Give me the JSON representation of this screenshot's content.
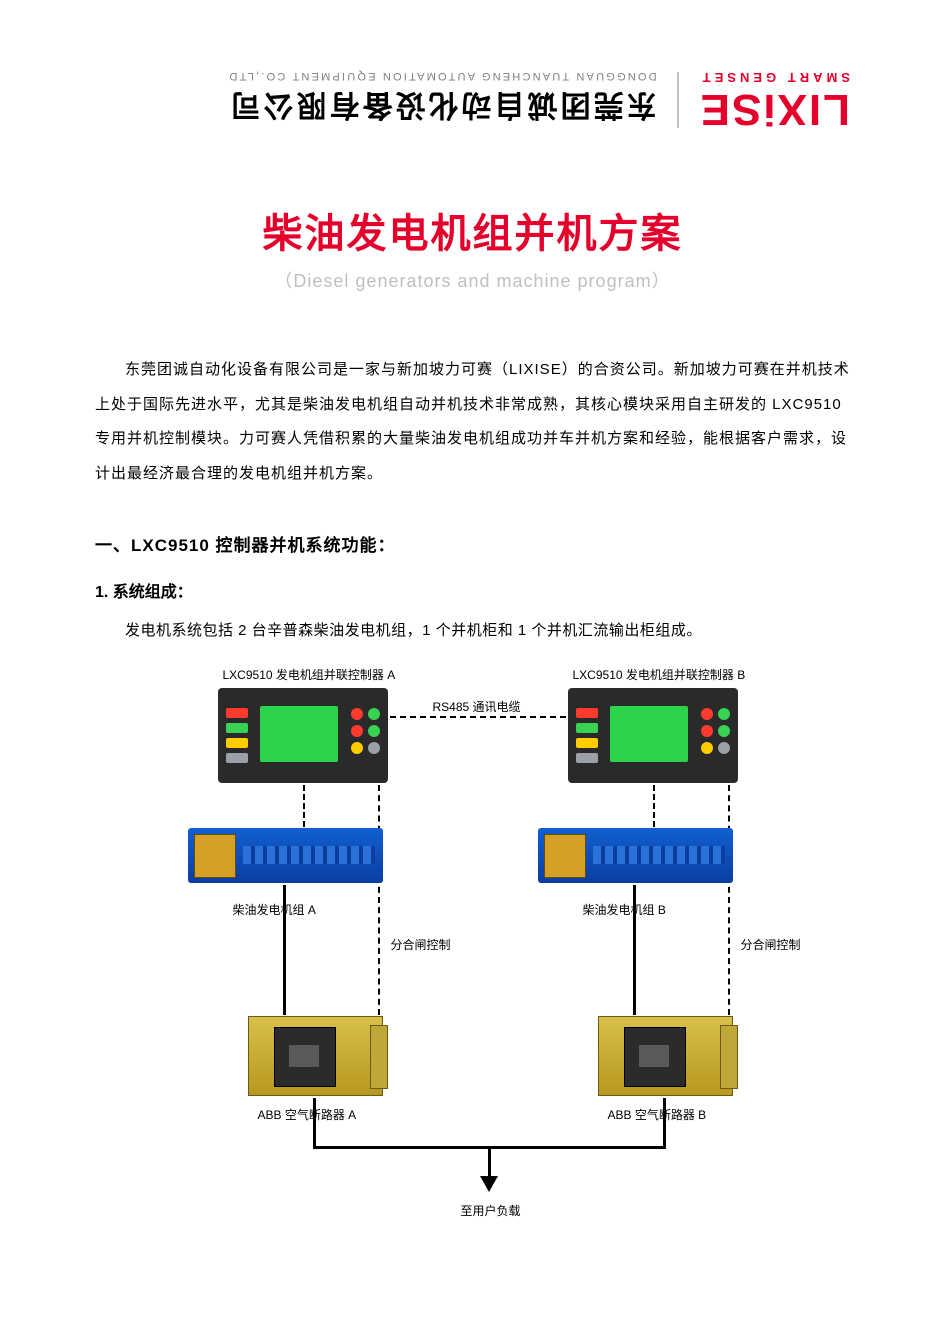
{
  "header": {
    "logo_main": "LIXiSE",
    "logo_sub": "SMART GENSET",
    "company_cn": "东莞团诚自动化设备有限公司",
    "company_en": "DONGGUAN TUANCHENG AUTOMATION EQUIPMENT CO.,LTD"
  },
  "title": {
    "main": "柴油发电机组并机方案",
    "sub": "（Diesel generators and machine program）"
  },
  "intro": "东莞团诚自动化设备有限公司是一家与新加坡力可赛（LIXISE）的合资公司。新加坡力可赛在并机技术上处于国际先进水平，尤其是柴油发电机组自动并机技术非常成熟，其核心模块采用自主研发的 LXC9510 专用并机控制模块。力可赛人凭借积累的大量柴油发电机组成功并车并机方案和经验，能根据客户需求，设计出最经济最合理的发电机组并机方案。",
  "section1": {
    "heading": "一、LXC9510 控制器并机系统功能：",
    "sub1": "1. 系统组成：",
    "line1": "发电机系统包括 2 台辛普森柴油发电机组，1 个并机柜和 1 个并机汇流输出柜组成。"
  },
  "diagram": {
    "controller_a": "LXC9510 发电机组并联控制器  A",
    "controller_b": "LXC9510 发电机组并联控制器  B",
    "cable": "RS485 通讯电缆",
    "gen_a": "柴油发电机组 A",
    "gen_b": "柴油发电机组 B",
    "switch_ctrl": "分合闸控制",
    "breaker_a": "ABB 空气断路器 A",
    "breaker_b": "ABB 空气断路器 B",
    "output": "至用户负载",
    "colors": {
      "controller_bg": "#2a2a2a",
      "screen": "#2bd44a",
      "generator": "#1060d0",
      "gen_panel": "#d4a026",
      "breaker": "#d8c04a",
      "breaker_dark": "#2b2b2b",
      "line": "#000000"
    },
    "ctrl_dot_colors": [
      "#ff3b30",
      "#39d353",
      "#ff3b30",
      "#39d353",
      "#ffcc00",
      "#9aa0a6"
    ],
    "ctrl_left_colors": [
      "#ff3b30",
      "#39d353",
      "#ffcc00",
      "#9aa0a6"
    ]
  }
}
